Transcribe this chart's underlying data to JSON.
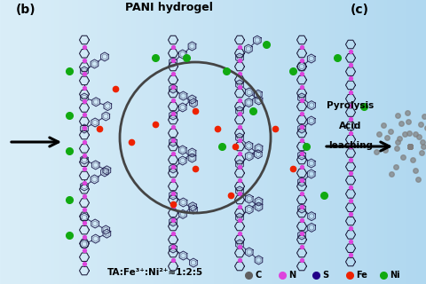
{
  "bg_color_left": "#daeef8",
  "bg_color_right": "#b8dff0",
  "label_b": "(b)",
  "label_c": "(c)",
  "title_b": "PANI hydrogel",
  "formula": "TA:Fe³⁺:Ni²⁺≈1:2:5",
  "arrow_label_line1": "Pyrolysis",
  "arrow_label_line2": "Acid",
  "arrow_label_line3": "leaching",
  "legend_items": [
    {
      "label": "C",
      "color": "#606060"
    },
    {
      "label": "N",
      "color": "#dd44dd"
    },
    {
      "label": "S",
      "color": "#220088"
    },
    {
      "label": "Fe",
      "color": "#ee2200"
    },
    {
      "label": "Ni",
      "color": "#11aa11"
    }
  ],
  "ring_color": "#1a1a3a",
  "branch_color": "#2a2a5a",
  "circle_color": "#444444",
  "green_color": "#11aa11",
  "red_color": "#ee2200",
  "pink_color": "#dd44dd"
}
